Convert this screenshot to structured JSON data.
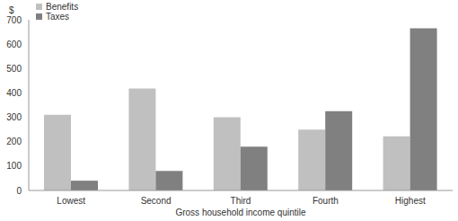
{
  "chart_data": {
    "type": "bar",
    "categories": [
      "Lowest",
      "Second",
      "Third",
      "Fourth",
      "Highest"
    ],
    "series": [
      {
        "name": "Benefits",
        "color": "#c0c0c0",
        "values": [
          310,
          418,
          300,
          250,
          222
        ]
      },
      {
        "name": "Taxes",
        "color": "#808080",
        "values": [
          40,
          80,
          180,
          325,
          665
        ]
      }
    ],
    "x_label": "Gross household income quintile",
    "y_label": "$",
    "ylim": [
      0,
      700
    ],
    "yticks": [
      0,
      100,
      200,
      300,
      400,
      500,
      600,
      700
    ],
    "legend": "top-left",
    "grid": false
  }
}
